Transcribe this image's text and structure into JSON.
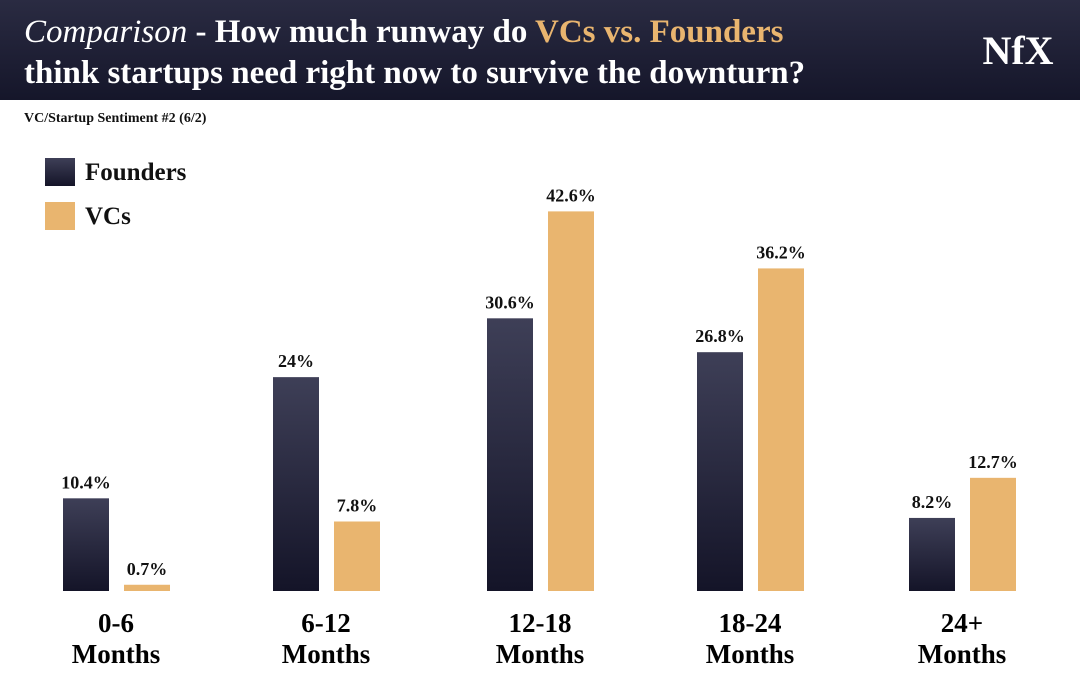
{
  "chart_data": {
    "type": "bar",
    "title": [
      "Comparison",
      " - How much runway do ",
      "VCs vs. Founders",
      "think startups need right now to survive the downturn?"
    ],
    "subtitle": "VC/Startup Sentiment #2 (6/2)",
    "logo": "NfX",
    "categories": [
      "0-6 Months",
      "6-12 Months",
      "12-18 Months",
      "18-24 Months",
      "24+ Months"
    ],
    "series": [
      {
        "name": "Founders",
        "color": "#23243a",
        "values": [
          10.4,
          24,
          30.6,
          26.8,
          8.2
        ],
        "value_labels": [
          "10.4%",
          "24%",
          "30.6%",
          "26.8%",
          "8.2%"
        ]
      },
      {
        "name": "VCs",
        "color": "#e9b56f",
        "values": [
          0.7,
          7.8,
          42.6,
          36.2,
          12.7
        ],
        "value_labels": [
          "0.7%",
          "7.8%",
          "42.6%",
          "36.2%",
          "12.7%"
        ]
      }
    ],
    "ylim": [
      0,
      45
    ],
    "legend": "top-left"
  }
}
